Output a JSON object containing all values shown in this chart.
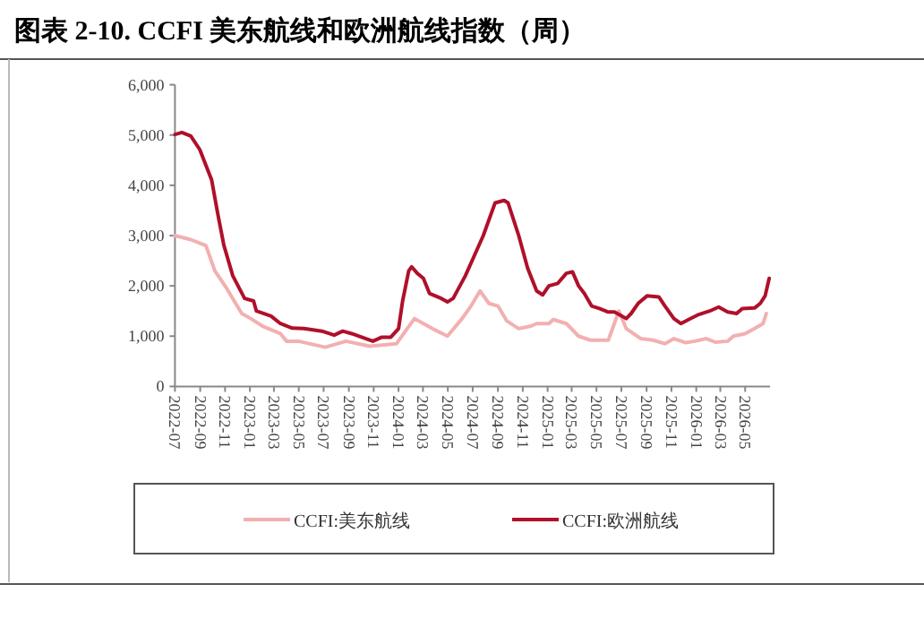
{
  "chart_data": {
    "type": "line",
    "title": "图表 2-10. CCFI 美东航线和欧洲航线指数（周）",
    "xlim": [
      "2022-07-01",
      "2026-07-01"
    ],
    "xticks": [
      {
        "value": "2022-07-01",
        "label": "2022-07"
      },
      {
        "value": "2022-09-01",
        "label": "2022-09"
      },
      {
        "value": "2022-11-01",
        "label": "2022-11"
      },
      {
        "value": "2023-01-01",
        "label": "2023-01"
      },
      {
        "value": "2023-03-01",
        "label": "2023-03"
      },
      {
        "value": "2023-05-01",
        "label": "2023-05"
      },
      {
        "value": "2023-07-01",
        "label": "2023-07"
      },
      {
        "value": "2023-09-01",
        "label": "2023-09"
      },
      {
        "value": "2023-11-01",
        "label": "2023-11"
      },
      {
        "value": "2024-01-01",
        "label": "2024-01"
      },
      {
        "value": "2024-03-01",
        "label": "2024-03"
      },
      {
        "value": "2024-05-01",
        "label": "2024-05"
      },
      {
        "value": "2024-07-01",
        "label": "2024-07"
      },
      {
        "value": "2024-09-01",
        "label": "2024-09"
      },
      {
        "value": "2024-11-01",
        "label": "2024-11"
      },
      {
        "value": "2025-01-01",
        "label": "2025-01"
      },
      {
        "value": "2025-03-01",
        "label": "2025-03"
      },
      {
        "value": "2025-05-01",
        "label": "2025-05"
      },
      {
        "value": "2025-07-01",
        "label": "2025-07"
      },
      {
        "value": "2025-09-01",
        "label": "2025-09"
      },
      {
        "value": "2025-11-01",
        "label": "2025-11"
      },
      {
        "value": "2026-01-01",
        "label": "2026-01"
      },
      {
        "value": "2026-03-01",
        "label": "2026-03"
      },
      {
        "value": "2026-05-01",
        "label": "2026-05"
      }
    ],
    "ylim": [
      0,
      6000
    ],
    "yticks": [
      0,
      {
        "value": 1000,
        "label": "1,000"
      },
      {
        "value": 2000,
        "label": "2,000"
      },
      {
        "value": 3000,
        "label": "3,000"
      },
      {
        "value": 4000,
        "label": "4,000"
      },
      {
        "value": 5000,
        "label": "5,000"
      },
      {
        "value": 6000,
        "label": "6,000"
      }
    ],
    "grid": false,
    "legend": "bottom",
    "series": [
      {
        "name": "CCFI:美东航线",
        "color": "#f2b0b0",
        "x": [
          "2022-07-01",
          "2022-08-09",
          "2022-09-15",
          "2022-10-07",
          "2022-11-05",
          "2022-12-12",
          "2023-01-03",
          "2023-02-01",
          "2023-03-17",
          "2023-04-01",
          "2023-04-30",
          "2023-06-13",
          "2023-07-05",
          "2023-08-25",
          "2023-10-22",
          "2023-12-27",
          "2024-01-18",
          "2024-02-09",
          "2024-03-02",
          "2024-03-24",
          "2024-04-30",
          "2024-06-05",
          "2024-06-27",
          "2024-07-19",
          "2024-08-10",
          "2024-09-01",
          "2024-09-23",
          "2024-10-22",
          "2024-11-21",
          "2024-12-05",
          "2025-01-04",
          "2025-01-15",
          "2025-02-16",
          "2025-03-18",
          "2025-04-16",
          "2025-05-30",
          "2025-06-25",
          "2025-07-13",
          "2025-08-18",
          "2025-09-17",
          "2025-10-16",
          "2025-11-07",
          "2025-12-06",
          "2025-12-28",
          "2026-01-26",
          "2026-02-17",
          "2026-03-19",
          "2026-04-02",
          "2026-05-01",
          "2026-05-24",
          "2026-06-14",
          "2026-06-22"
        ],
        "values": [
          3000,
          2920,
          2800,
          2300,
          1950,
          1450,
          1350,
          1200,
          1050,
          900,
          900,
          820,
          780,
          900,
          800,
          850,
          1100,
          1350,
          1250,
          1150,
          1000,
          1350,
          1600,
          1900,
          1650,
          1600,
          1300,
          1150,
          1200,
          1250,
          1250,
          1330,
          1250,
          1000,
          920,
          920,
          1500,
          1150,
          950,
          920,
          850,
          950,
          870,
          900,
          950,
          880,
          900,
          1000,
          1050,
          1150,
          1250,
          1450
        ]
      },
      {
        "name": "CCFI:欧洲航线",
        "color": "#b0102a",
        "x": [
          "2022-07-01",
          "2022-07-18",
          "2022-08-09",
          "2022-08-31",
          "2022-09-29",
          "2022-10-14",
          "2022-10-29",
          "2022-11-20",
          "2022-12-19",
          "2023-01-10",
          "2023-01-17",
          "2023-02-22",
          "2023-03-17",
          "2023-04-15",
          "2023-05-14",
          "2023-06-27",
          "2023-07-27",
          "2023-08-17",
          "2023-09-08",
          "2023-10-30",
          "2023-11-21",
          "2023-12-13",
          "2024-01-01",
          "2024-01-11",
          "2024-01-26",
          "2024-02-02",
          "2024-02-16",
          "2024-03-02",
          "2024-03-17",
          "2024-04-15",
          "2024-04-30",
          "2024-05-14",
          "2024-06-13",
          "2024-07-05",
          "2024-07-27",
          "2024-08-25",
          "2024-09-16",
          "2024-09-26",
          "2024-10-22",
          "2024-11-13",
          "2024-12-05",
          "2024-12-20",
          "2025-01-04",
          "2025-01-26",
          "2025-02-16",
          "2025-03-03",
          "2025-03-18",
          "2025-04-01",
          "2025-04-19",
          "2025-05-08",
          "2025-05-30",
          "2025-06-14",
          "2025-06-28",
          "2025-07-13",
          "2025-07-25",
          "2025-08-11",
          "2025-09-02",
          "2025-10-01",
          "2025-10-16",
          "2025-11-07",
          "2025-11-24",
          "2025-12-13",
          "2026-01-04",
          "2026-02-03",
          "2026-02-25",
          "2026-03-19",
          "2026-04-10",
          "2026-04-24",
          "2026-05-24",
          "2026-06-07",
          "2026-06-19",
          "2026-06-29"
        ],
        "values": [
          5010,
          5050,
          4980,
          4710,
          4110,
          3440,
          2810,
          2200,
          1750,
          1700,
          1500,
          1400,
          1250,
          1160,
          1150,
          1100,
          1020,
          1100,
          1050,
          900,
          980,
          980,
          1150,
          1700,
          2300,
          2380,
          2250,
          2150,
          1850,
          1750,
          1680,
          1750,
          2200,
          2600,
          3000,
          3650,
          3700,
          3650,
          3000,
          2350,
          1900,
          1820,
          2000,
          2050,
          2250,
          2280,
          2000,
          1850,
          1600,
          1550,
          1480,
          1480,
          1420,
          1350,
          1450,
          1650,
          1800,
          1780,
          1600,
          1350,
          1250,
          1330,
          1420,
          1500,
          1580,
          1480,
          1450,
          1550,
          1560,
          1650,
          1800,
          2150
        ]
      }
    ]
  }
}
